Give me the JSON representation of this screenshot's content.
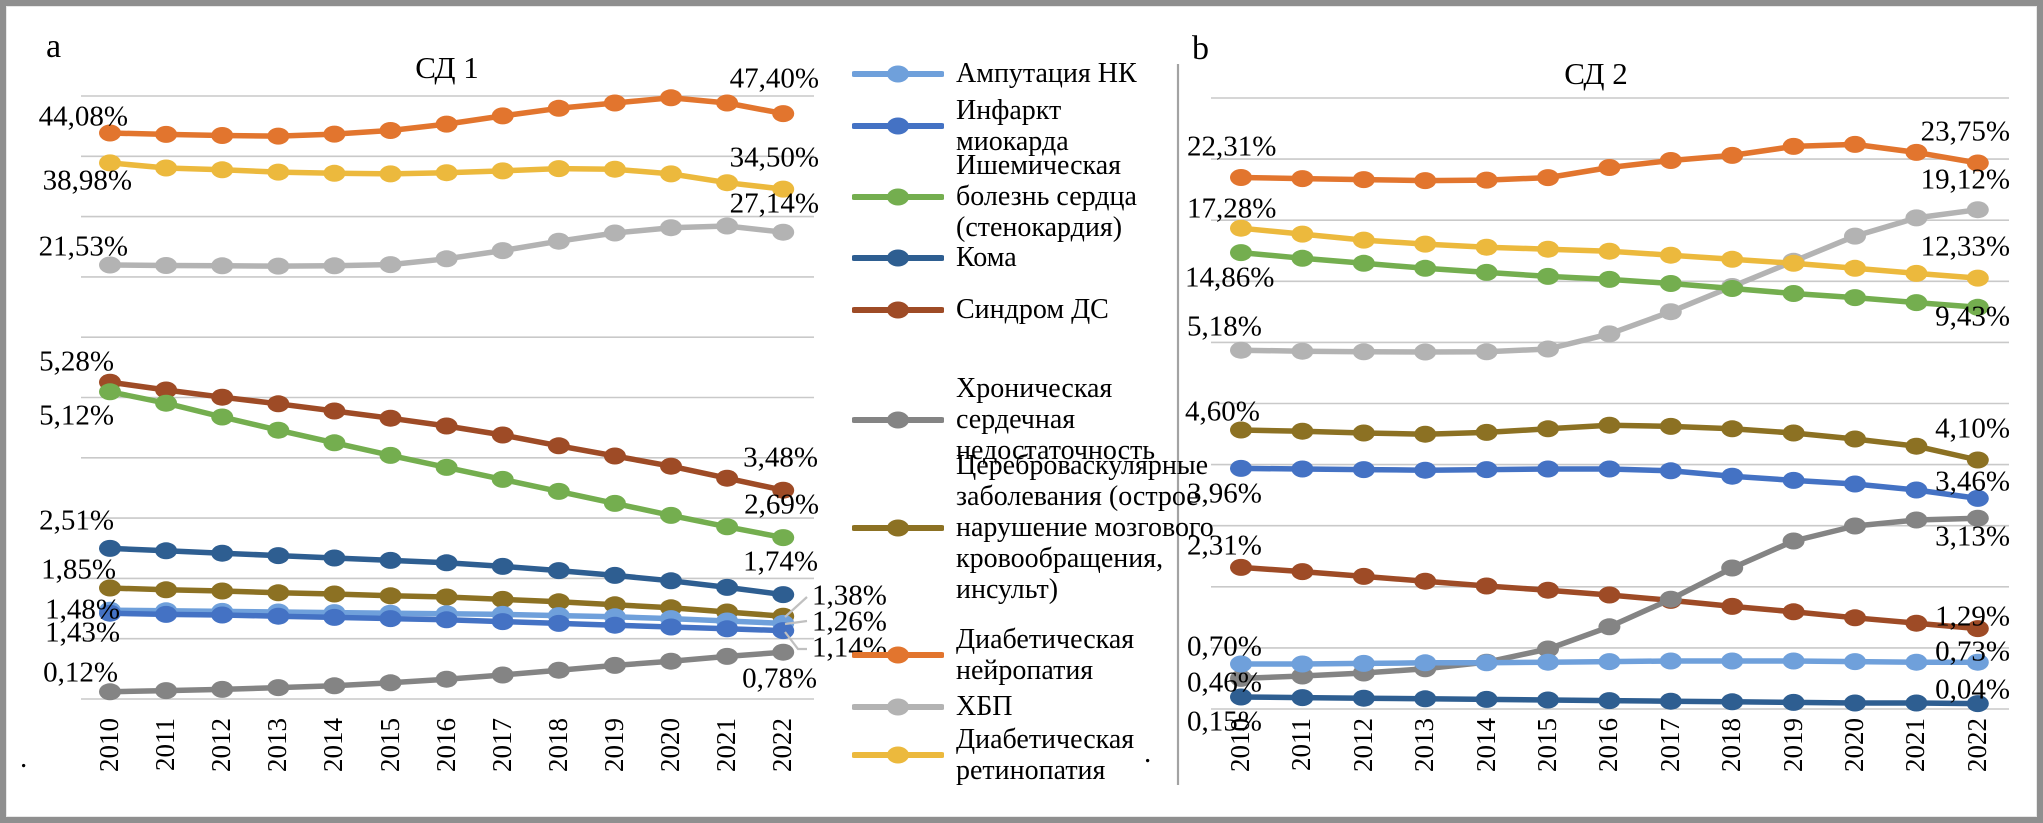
{
  "panel_a": {
    "corner_letter": "a",
    "title": "СД 1"
  },
  "panel_b": {
    "corner_letter": "b",
    "title": "СД 2"
  },
  "years": [
    2010,
    2011,
    2012,
    2013,
    2014,
    2015,
    2016,
    2017,
    2018,
    2019,
    2020,
    2021,
    2022
  ],
  "decor": {
    "dot": "."
  },
  "colors": {
    "amputation": "#6FA0DB",
    "infarction": "#4472C4",
    "ihd": "#74AE4F",
    "coma": "#2E5E91",
    "syndrome": "#9E4B26",
    "chf": "#848484",
    "cerebro": "#8C7123",
    "neuropathy": "#E2752E",
    "hbp": "#B3B3B3",
    "retinopathy": "#ECB93D"
  },
  "chart_data": [
    {
      "type": "line",
      "panel": "a",
      "title": "СД 1",
      "xlabel": "",
      "ylabel": "",
      "grid": true,
      "x": [
        2010,
        2011,
        2012,
        2013,
        2014,
        2015,
        2016,
        2017,
        2018,
        2019,
        2020,
        2021,
        2022
      ],
      "series": [
        {
          "id": "neuropathy",
          "name": "Диабетическая нейропатия",
          "color": "#E2752E",
          "first_label": "44,08%",
          "last_label": "47,40%",
          "values": [
            44.08,
            43.85,
            43.65,
            43.55,
            43.9,
            44.5,
            45.6,
            47.0,
            48.3,
            49.2,
            50.1,
            49.2,
            47.4
          ]
        },
        {
          "id": "retinopathy",
          "name": "Диабетическая ретинопатия",
          "color": "#ECB93D",
          "first_label": "38,98%",
          "last_label": "34,50%",
          "values": [
            38.98,
            38.1,
            37.8,
            37.4,
            37.2,
            37.1,
            37.3,
            37.6,
            38.0,
            37.9,
            37.1,
            35.6,
            34.5
          ]
        },
        {
          "id": "hbp",
          "name": "ХБП",
          "color": "#B3B3B3",
          "first_label": "21,53%",
          "last_label": "27,14%",
          "values": [
            21.53,
            21.45,
            21.4,
            21.35,
            21.4,
            21.6,
            22.6,
            24.0,
            25.6,
            27.0,
            27.9,
            28.2,
            27.14
          ]
        },
        {
          "id": "syndrome",
          "name": "Синдром ДС",
          "color": "#9E4B26",
          "first_label": "5,28%",
          "last_label": "3,48%",
          "values": [
            5.28,
            5.15,
            5.03,
            4.92,
            4.8,
            4.68,
            4.55,
            4.4,
            4.22,
            4.05,
            3.88,
            3.68,
            3.48
          ]
        },
        {
          "id": "ihd",
          "name": "Ишемическая болезнь сердца (стенокардия)",
          "color": "#74AE4F",
          "first_label": "5,12%",
          "last_label": "2,69%",
          "values": [
            5.12,
            4.93,
            4.7,
            4.48,
            4.27,
            4.06,
            3.86,
            3.66,
            3.46,
            3.26,
            3.06,
            2.87,
            2.69
          ]
        },
        {
          "id": "coma",
          "name": "Кома",
          "color": "#2E5E91",
          "first_label": "2,51%",
          "last_label": "1,74%",
          "values": [
            2.51,
            2.47,
            2.43,
            2.39,
            2.35,
            2.31,
            2.27,
            2.21,
            2.14,
            2.06,
            1.97,
            1.86,
            1.74
          ]
        },
        {
          "id": "cerebro",
          "name": "Цереброваскулярные заболевания (острое нарушение мозгового кровообращения, инсульт)",
          "color": "#8C7123",
          "first_label": "1,85%",
          "last_label": "1,38%",
          "values": [
            1.85,
            1.82,
            1.8,
            1.77,
            1.75,
            1.72,
            1.7,
            1.66,
            1.62,
            1.57,
            1.52,
            1.45,
            1.38
          ]
        },
        {
          "id": "amputation",
          "name": "Ампутация НК",
          "color": "#6FA0DB",
          "first_label": "1,48%",
          "last_label": "1,26%",
          "values": [
            1.48,
            1.47,
            1.46,
            1.45,
            1.44,
            1.43,
            1.42,
            1.41,
            1.39,
            1.37,
            1.34,
            1.3,
            1.26
          ]
        },
        {
          "id": "infarction",
          "name": "Инфаркт миокарда",
          "color": "#4472C4",
          "first_label": "1,43%",
          "last_label": "1,14%",
          "values": [
            1.43,
            1.41,
            1.4,
            1.38,
            1.36,
            1.34,
            1.32,
            1.29,
            1.26,
            1.23,
            1.2,
            1.17,
            1.14
          ]
        },
        {
          "id": "chf",
          "name": "Хроническая сердечная недостаточность",
          "color": "#848484",
          "first_label": "0,12%",
          "last_label": "0,78%",
          "values": [
            0.12,
            0.14,
            0.16,
            0.19,
            0.22,
            0.27,
            0.33,
            0.4,
            0.48,
            0.56,
            0.63,
            0.71,
            0.78
          ]
        }
      ]
    },
    {
      "type": "line",
      "panel": "b",
      "title": "СД 2",
      "xlabel": "",
      "ylabel": "",
      "grid": true,
      "x": [
        2010,
        2011,
        2012,
        2013,
        2014,
        2015,
        2016,
        2017,
        2018,
        2019,
        2020,
        2021,
        2022
      ],
      "series": [
        {
          "id": "neuropathy",
          "name": "Диабетическая нейропатия",
          "color": "#E2752E",
          "first_label": "22,31%",
          "last_label": "23,75%",
          "values": [
            22.31,
            22.2,
            22.1,
            22.0,
            22.05,
            22.3,
            23.3,
            24.0,
            24.5,
            25.4,
            25.6,
            24.8,
            23.75
          ]
        },
        {
          "id": "hbp",
          "name": "ХБП",
          "color": "#B3B3B3",
          "first_label": "5,18%",
          "last_label": "19,12%",
          "values": [
            5.18,
            5.08,
            5.02,
            5.0,
            5.02,
            5.3,
            6.8,
            9.0,
            11.5,
            14.0,
            16.5,
            18.3,
            19.12
          ]
        },
        {
          "id": "retinopathy",
          "name": "Диабетическая ретинопатия",
          "color": "#ECB93D",
          "first_label": "17,28%",
          "last_label": "12,33%",
          "values": [
            17.28,
            16.7,
            16.1,
            15.7,
            15.4,
            15.2,
            15.0,
            14.6,
            14.2,
            13.8,
            13.3,
            12.8,
            12.33
          ]
        },
        {
          "id": "ihd",
          "name": "Ишемическая болезнь сердца (стенокардия)",
          "color": "#74AE4F",
          "first_label": "14,86%",
          "last_label": "9,43%",
          "values": [
            14.86,
            14.3,
            13.8,
            13.3,
            12.9,
            12.5,
            12.2,
            11.8,
            11.3,
            10.8,
            10.4,
            9.9,
            9.43
          ]
        },
        {
          "id": "cerebro",
          "name": "Цереброваскулярные заболевания (острое нарушение мозгового кровообращения, инсульт)",
          "color": "#8C7123",
          "first_label": "4,60%",
          "last_label": "4,10%",
          "values": [
            4.6,
            4.58,
            4.55,
            4.53,
            4.56,
            4.62,
            4.68,
            4.66,
            4.62,
            4.55,
            4.45,
            4.33,
            4.1
          ]
        },
        {
          "id": "infarction",
          "name": "Инфаркт миокарда",
          "color": "#4472C4",
          "first_label": "3,96%",
          "last_label": "3,46%",
          "values": [
            3.96,
            3.95,
            3.94,
            3.93,
            3.94,
            3.95,
            3.95,
            3.92,
            3.83,
            3.76,
            3.7,
            3.6,
            3.46
          ]
        },
        {
          "id": "syndrome",
          "name": "Синдром ДС",
          "color": "#9E4B26",
          "first_label": "2,31%",
          "last_label": "1,29%",
          "values": [
            2.31,
            2.24,
            2.16,
            2.08,
            2.0,
            1.93,
            1.85,
            1.76,
            1.66,
            1.57,
            1.47,
            1.38,
            1.29
          ]
        },
        {
          "id": "chf",
          "name": "Хроническая сердечная недостаточность",
          "color": "#848484",
          "first_label": "0,46%",
          "last_label": "3,13%",
          "values": [
            0.46,
            0.5,
            0.55,
            0.62,
            0.73,
            0.95,
            1.32,
            1.78,
            2.3,
            2.75,
            3.0,
            3.1,
            3.13
          ]
        },
        {
          "id": "amputation",
          "name": "Ампутация НК",
          "color": "#6FA0DB",
          "first_label": "0,70%",
          "last_label": "0,73%",
          "values": [
            0.7,
            0.7,
            0.71,
            0.72,
            0.72,
            0.73,
            0.74,
            0.75,
            0.75,
            0.75,
            0.74,
            0.73,
            0.73
          ]
        },
        {
          "id": "coma",
          "name": "Кома",
          "color": "#2E5E91",
          "first_label": "0,15%",
          "last_label": "0,04%",
          "values": [
            0.15,
            0.14,
            0.13,
            0.12,
            0.11,
            0.1,
            0.09,
            0.08,
            0.07,
            0.06,
            0.05,
            0.05,
            0.04
          ]
        }
      ]
    }
  ],
  "legend": {
    "items": [
      {
        "id": "amputation",
        "color": "#6FA0DB",
        "lines": [
          "Ампутация НК"
        ]
      },
      {
        "id": "infarction",
        "color": "#4472C4",
        "lines": [
          "Инфаркт",
          "миокарда"
        ]
      },
      {
        "id": "ihd",
        "color": "#74AE4F",
        "lines": [
          "Ишемическая",
          "болезнь сердца",
          "(стенокардия)"
        ]
      },
      {
        "id": "coma",
        "color": "#2E5E91",
        "lines": [
          "Кома"
        ]
      },
      {
        "id": "syndrome",
        "color": "#9E4B26",
        "lines": [
          "Синдром ДС"
        ]
      },
      {
        "id": "chf",
        "color": "#848484",
        "lines": [
          "Хроническая",
          "сердечная",
          "недостаточность"
        ]
      },
      {
        "id": "cerebro",
        "color": "#8C7123",
        "lines": [
          "Цереброваскулярные",
          "заболевания (острое",
          "нарушение мозгового",
          "кровообращения,",
          "инсульт)"
        ]
      },
      {
        "id": "neuropathy",
        "color": "#E2752E",
        "lines": [
          "Диабетическая",
          "нейропатия"
        ]
      },
      {
        "id": "hbp",
        "color": "#B3B3B3",
        "lines": [
          "ХБП"
        ]
      },
      {
        "id": "retinopathy",
        "color": "#ECB93D",
        "lines": [
          "Диабетическая",
          "ретинопатия"
        ]
      }
    ]
  }
}
